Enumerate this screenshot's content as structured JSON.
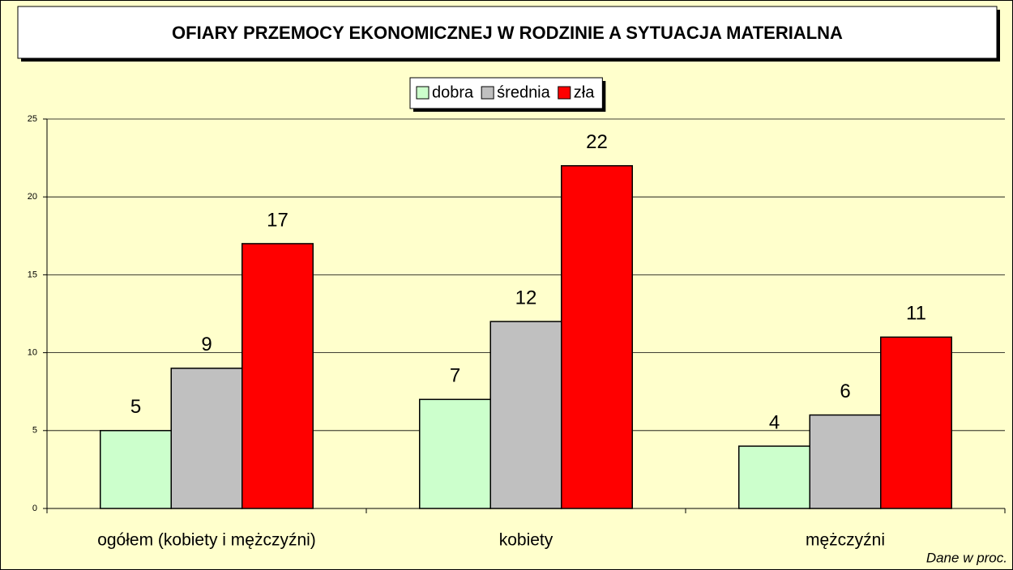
{
  "chart_data": {
    "type": "bar",
    "title": "OFIARY PRZEMOCY EKONOMICZNEJ W RODZINIE A SYTUACJA MATERIALNA",
    "categories": [
      "ogółem (kobiety i mężczyźni)",
      "kobiety",
      "mężczyźni"
    ],
    "series": [
      {
        "name": "dobra",
        "color": "#ccffcc",
        "values": [
          5,
          7,
          4
        ]
      },
      {
        "name": "średnia",
        "color": "#c0c0c0",
        "values": [
          9,
          12,
          6
        ]
      },
      {
        "name": "zła",
        "color": "#ff0000",
        "values": [
          17,
          22,
          11
        ]
      }
    ],
    "ylim": [
      0,
      25
    ],
    "yticks": [
      0,
      5,
      10,
      15,
      20,
      25
    ],
    "grid": true,
    "legend": "top",
    "note": "Dane w proc."
  }
}
